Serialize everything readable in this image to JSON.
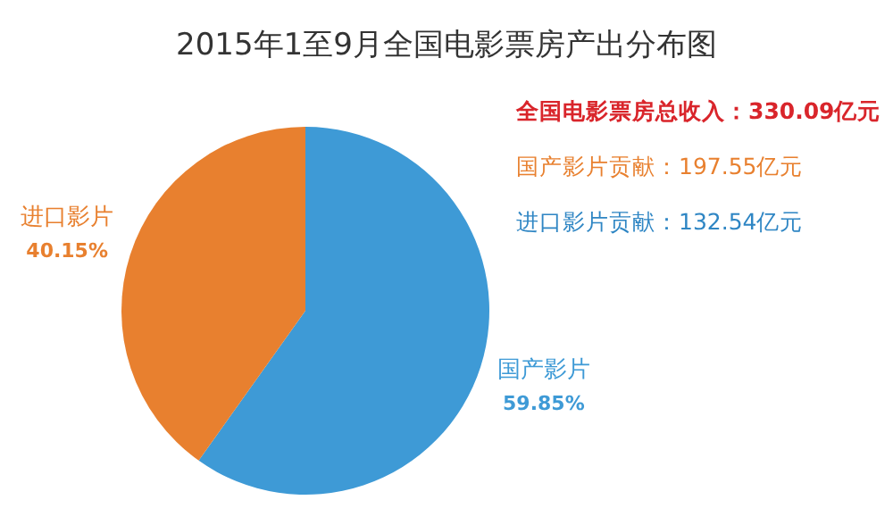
{
  "chart_data": {
    "type": "pie",
    "title": "2015年1至9月全国电影票房产出分布图",
    "categories": [
      "国产影片",
      "进口影片"
    ],
    "values": [
      59.85,
      40.15
    ],
    "value_labels": [
      "59.85%",
      "40.15%"
    ],
    "colors": [
      "#3e9ad6",
      "#e8802f"
    ],
    "legend": false,
    "annotations": [
      "全国电影票房总收入：330.09亿元",
      "国产影片贡献：197.55亿元",
      "进口影片贡献：132.54亿元"
    ]
  }
}
